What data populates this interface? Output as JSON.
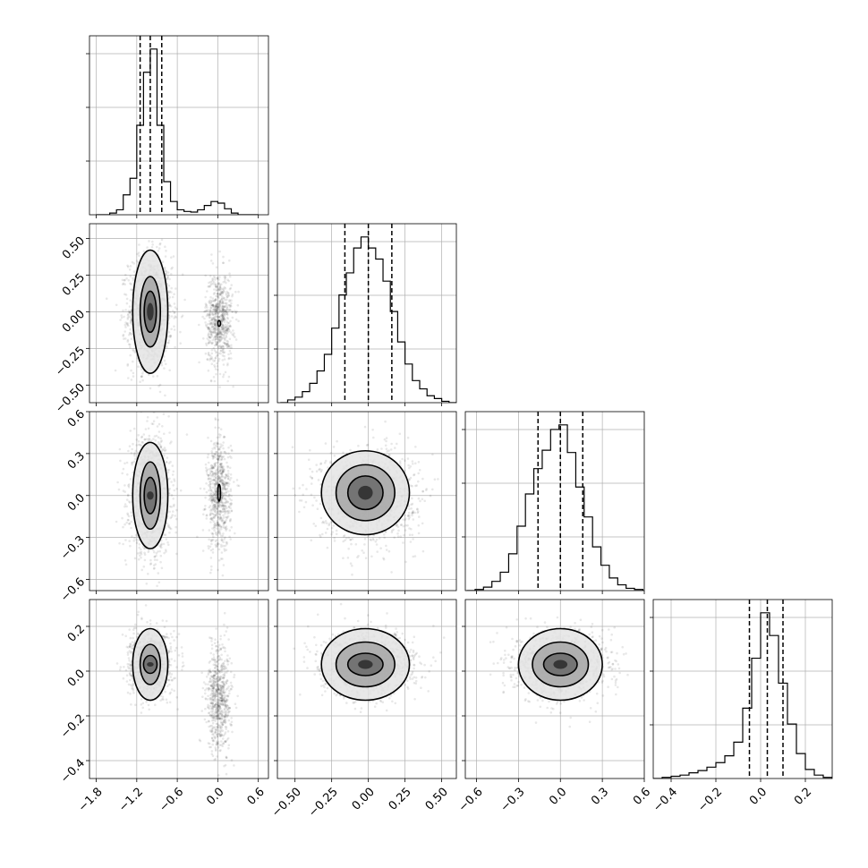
{
  "chart_data": {
    "type": "corner",
    "parameters": [
      {
        "range": [
          -1.9,
          0.75
        ],
        "ticks": [
          -1.8,
          -1.2,
          -0.6,
          0.0,
          0.6
        ],
        "tick_labels": [
          "−1.8",
          "−1.2",
          "−0.6",
          "0.0",
          "0.6"
        ],
        "quantiles": [
          -1.15,
          -1.0,
          -0.83
        ]
      },
      {
        "range": [
          -0.62,
          0.6
        ],
        "ticks": [
          -0.5,
          -0.25,
          0.0,
          0.25,
          0.5
        ],
        "tick_labels": [
          "−0.50",
          "−0.25",
          "0.00",
          "0.25",
          "0.50"
        ],
        "quantiles": [
          -0.16,
          0.0,
          0.16
        ]
      },
      {
        "range": [
          -0.68,
          0.6
        ],
        "ticks": [
          -0.6,
          -0.3,
          0.0,
          0.3,
          0.6
        ],
        "tick_labels": [
          "−0.6",
          "−0.3",
          "0.0",
          "0.3",
          "0.6"
        ],
        "quantiles": [
          -0.16,
          0.0,
          0.16
        ]
      },
      {
        "range": [
          -0.48,
          0.32
        ],
        "ticks": [
          -0.4,
          -0.2,
          0.0,
          0.2
        ],
        "tick_labels": [
          "−0.4",
          "−0.2",
          "0.0",
          "0.2"
        ],
        "quantiles": [
          -0.05,
          0.03,
          0.1
        ]
      }
    ],
    "histograms": [
      {
        "x": [
          -1.75,
          -1.65,
          -1.55,
          -1.45,
          -1.35,
          -1.25,
          -1.15,
          -1.05,
          -0.95,
          -0.85,
          -0.75,
          -0.65,
          -0.55,
          -0.45,
          -0.35,
          -0.25,
          -0.15,
          -0.05,
          0.05,
          0.15,
          0.25,
          0.35,
          0.45,
          0.55
        ],
        "counts": [
          0,
          0,
          5,
          15,
          60,
          110,
          270,
          430,
          500,
          270,
          100,
          40,
          15,
          10,
          8,
          15,
          28,
          40,
          35,
          18,
          5,
          0,
          0,
          0
        ]
      },
      {
        "x": [
          -0.575,
          -0.525,
          -0.475,
          -0.425,
          -0.375,
          -0.325,
          -0.275,
          -0.225,
          -0.175,
          -0.125,
          -0.075,
          -0.025,
          0.025,
          0.075,
          0.125,
          0.175,
          0.225,
          0.275,
          0.325,
          0.375,
          0.425,
          0.475,
          0.525,
          0.575
        ],
        "counts": [
          0,
          10,
          20,
          40,
          70,
          115,
          175,
          270,
          390,
          470,
          560,
          600,
          560,
          520,
          440,
          330,
          220,
          140,
          80,
          50,
          25,
          15,
          5,
          0
        ]
      },
      {
        "x": [
          -0.64,
          -0.58,
          -0.52,
          -0.46,
          -0.4,
          -0.34,
          -0.28,
          -0.22,
          -0.16,
          -0.1,
          -0.04,
          0.02,
          0.08,
          0.14,
          0.2,
          0.26,
          0.32,
          0.38,
          0.44,
          0.5,
          0.56
        ],
        "counts": [
          0,
          5,
          15,
          40,
          80,
          160,
          280,
          420,
          530,
          610,
          700,
          720,
          600,
          450,
          320,
          190,
          110,
          55,
          25,
          10,
          5
        ]
      },
      {
        "x": [
          -0.46,
          -0.42,
          -0.38,
          -0.34,
          -0.3,
          -0.26,
          -0.22,
          -0.18,
          -0.14,
          -0.1,
          -0.06,
          -0.02,
          0.02,
          0.06,
          0.1,
          0.14,
          0.18,
          0.22,
          0.26,
          0.3
        ],
        "counts": [
          0,
          5,
          10,
          15,
          25,
          35,
          50,
          70,
          100,
          160,
          310,
          530,
          730,
          630,
          420,
          240,
          110,
          40,
          15,
          5
        ]
      }
    ],
    "pairs": [
      {
        "row": 1,
        "col": 0,
        "points": [
          [
            -1.0,
            0.0,
            0.16,
            0.19,
            0.0
          ],
          [
            0.02,
            -0.05,
            0.1,
            0.16,
            0.0
          ]
        ],
        "contours": [
          {
            "x": -1.0,
            "y": 0.0,
            "rx": [
              0.05,
              0.09,
              0.15,
              0.26
            ],
            "ry": [
              0.06,
              0.14,
              0.24,
              0.42
            ]
          }
        ],
        "extra_contours": [
          {
            "x": 0.02,
            "y": -0.08,
            "rx": [
              0.01
            ],
            "ry": [
              0.02
            ]
          }
        ]
      },
      {
        "row": 2,
        "col": 0,
        "points": [
          [
            -1.0,
            0.0,
            0.15,
            0.2,
            0.0
          ],
          [
            0.02,
            0.0,
            0.09,
            0.2,
            0.0
          ]
        ],
        "contours": [
          {
            "x": -1.0,
            "y": 0.0,
            "rx": [
              0.05,
              0.09,
              0.15,
              0.26
            ],
            "ry": [
              0.03,
              0.13,
              0.24,
              0.38
            ]
          }
        ],
        "extra_contours": [
          {
            "x": 0.02,
            "y": 0.02,
            "rx": [
              0.012
            ],
            "ry": [
              0.06
            ]
          }
        ]
      },
      {
        "row": 2,
        "col": 1,
        "points": [
          [
            0.0,
            0.0,
            0.16,
            0.16,
            0.0
          ]
        ],
        "contours": [
          {
            "x": -0.02,
            "y": 0.02,
            "rx": [
              0.05,
              0.12,
              0.2,
              0.3
            ],
            "ry": [
              0.05,
              0.12,
              0.2,
              0.3
            ]
          }
        ],
        "extra_contours": []
      },
      {
        "row": 3,
        "col": 0,
        "points": [
          [
            -1.0,
            0.03,
            0.15,
            0.07,
            0.0
          ],
          [
            0.02,
            -0.12,
            0.09,
            0.12,
            0.0
          ]
        ],
        "contours": [
          {
            "x": -1.0,
            "y": 0.03,
            "rx": [
              0.05,
              0.1,
              0.15,
              0.26
            ],
            "ry": [
              0.01,
              0.04,
              0.09,
              0.16
            ]
          }
        ],
        "extra_contours": []
      },
      {
        "row": 3,
        "col": 1,
        "points": [
          [
            0.0,
            0.03,
            0.16,
            0.07,
            0.0
          ]
        ],
        "contours": [
          {
            "x": -0.02,
            "y": 0.03,
            "rx": [
              0.05,
              0.12,
              0.2,
              0.3
            ],
            "ry": [
              0.02,
              0.05,
              0.1,
              0.16
            ]
          }
        ],
        "extra_contours": []
      },
      {
        "row": 3,
        "col": 2,
        "points": [
          [
            0.0,
            0.03,
            0.16,
            0.07,
            0.0
          ]
        ],
        "contours": [
          {
            "x": 0.0,
            "y": 0.03,
            "rx": [
              0.05,
              0.12,
              0.2,
              0.3
            ],
            "ry": [
              0.02,
              0.05,
              0.1,
              0.16
            ]
          }
        ],
        "extra_contours": []
      }
    ]
  }
}
